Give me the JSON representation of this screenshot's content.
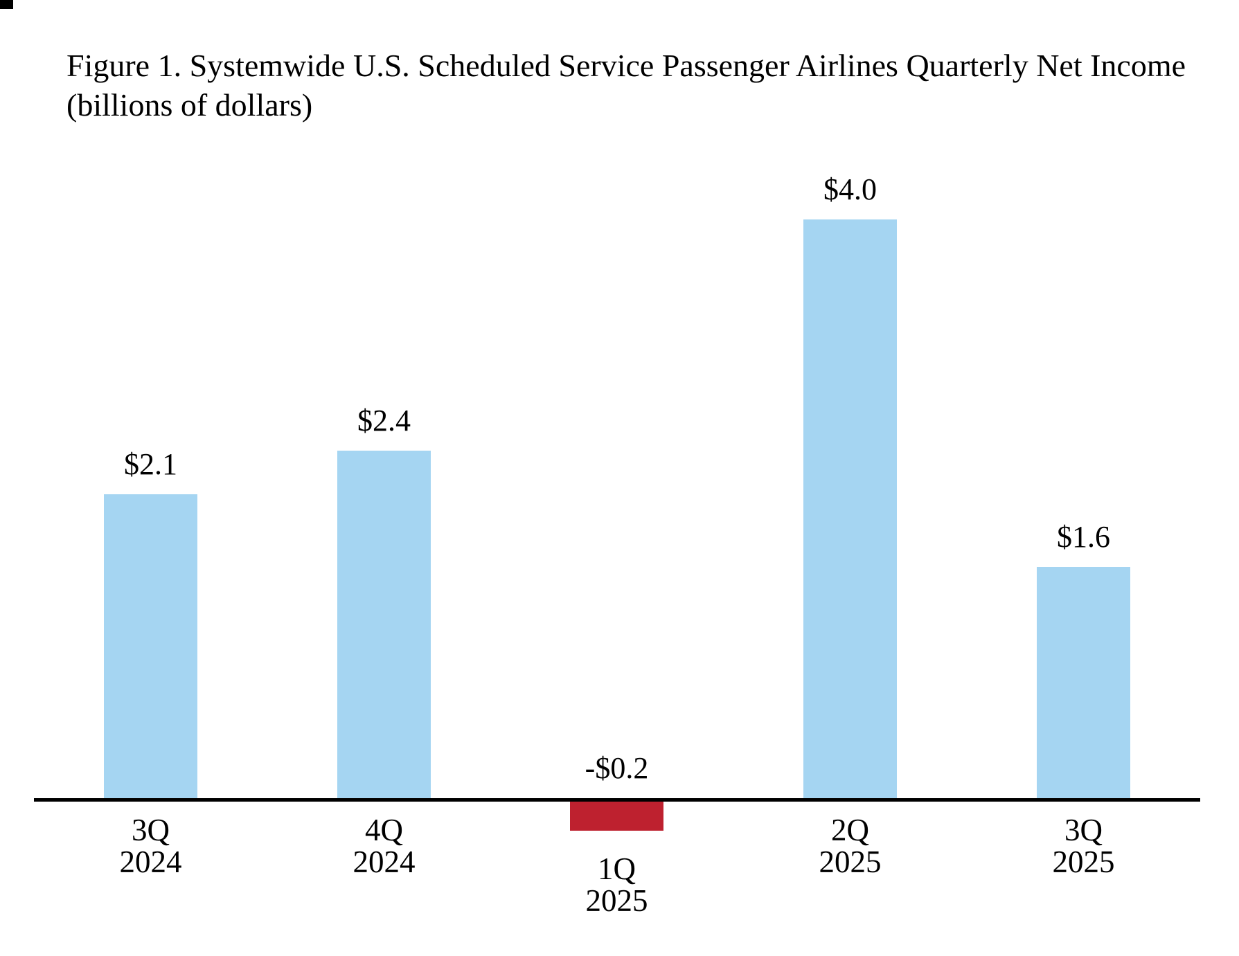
{
  "figure": {
    "title_line1": "Figure 1. Systemwide U.S. Scheduled Service Passenger Airlines Quarterly Net Income",
    "title_line2": "(billions of dollars)"
  },
  "chart_data": {
    "type": "bar",
    "title": "Figure 1. Systemwide U.S. Scheduled Service Passenger Airlines Quarterly Net Income (billions of dollars)",
    "unit": "billions of dollars",
    "categories": [
      "3Q 2024",
      "4Q 2024",
      "1Q 2025",
      "2Q 2025",
      "3Q 2025"
    ],
    "category_lines": [
      [
        "3Q",
        "2024"
      ],
      [
        "4Q",
        "2024"
      ],
      [
        "1Q",
        "2025"
      ],
      [
        "2Q",
        "2025"
      ],
      [
        "3Q",
        "2025"
      ]
    ],
    "values": [
      2.1,
      2.4,
      -0.2,
      4.0,
      1.6
    ],
    "value_labels": [
      "$2.1",
      "$2.4",
      "-$0.2",
      "$4.0",
      "$1.6"
    ],
    "baseline": 0,
    "ylim": [
      -0.5,
      4.5
    ],
    "grid": false,
    "legend": "none",
    "y_axis_shown": false,
    "colors": {
      "positive_bar": "#A5D5F2",
      "negative_bar": "#BE212F",
      "axis": "#000000",
      "text": "#000000",
      "background": "#FFFFFF"
    }
  }
}
